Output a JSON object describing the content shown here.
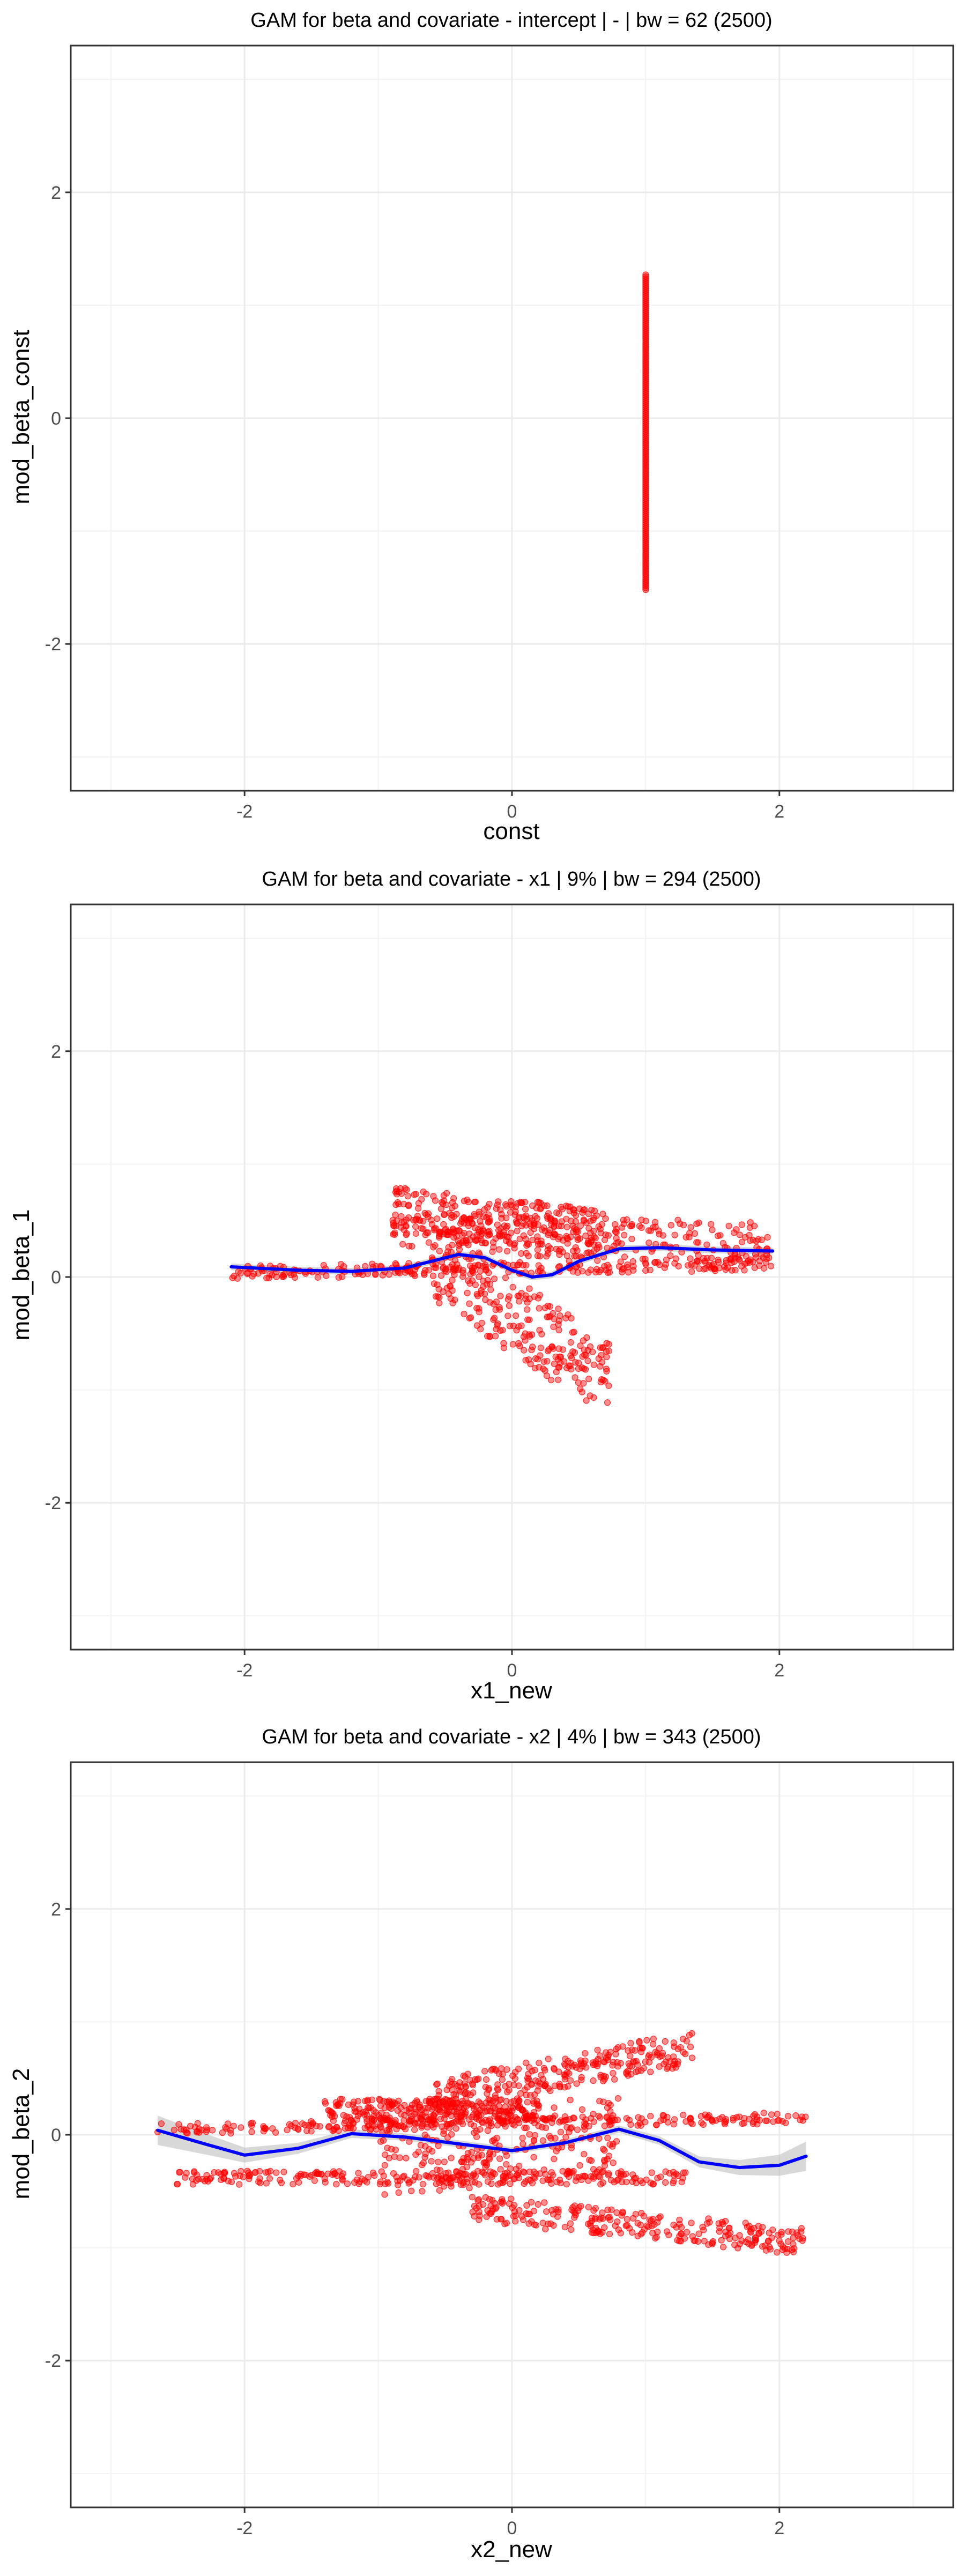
{
  "chart_data": [
    {
      "type": "scatter",
      "title": "GAM for beta and covariate - intercept | - | bw = 62 (2500)",
      "xlabel": "const",
      "ylabel": "mod_beta_const",
      "xlim": [
        -3.3,
        3.3
      ],
      "ylim": [
        -3.3,
        3.3
      ],
      "xticks": [
        -2,
        0,
        2
      ],
      "yticks": [
        -2,
        0,
        2
      ],
      "xtick_labels": [
        "-2",
        "0",
        "2"
      ],
      "ytick_labels": [
        "-2",
        "0",
        "2"
      ],
      "grid": true,
      "point_color": "#ff0000",
      "line_color": "#0000ff",
      "ribbon_color": "#bebebe",
      "series": [
        {
          "kind": "points",
          "x_values": [
            1
          ],
          "y_range": [
            -1.52,
            1.27
          ]
        }
      ]
    },
    {
      "type": "scatter",
      "title": "GAM for beta and covariate - x1 | 9% | bw = 294 (2500)",
      "xlabel": "x1_new",
      "ylabel": "mod_beta_1",
      "xlim": [
        -3.3,
        3.3
      ],
      "ylim": [
        -3.3,
        3.3
      ],
      "xticks": [
        -2,
        0,
        2
      ],
      "yticks": [
        -2,
        0,
        2
      ],
      "xtick_labels": [
        "-2",
        "0",
        "2"
      ],
      "ytick_labels": [
        "-2",
        "0",
        "2"
      ],
      "grid": true,
      "point_color": "#ff0000",
      "line_color": "#0000ff",
      "ribbon_color": "#bebebe",
      "series": [
        {
          "kind": "points",
          "clusters": [
            {
              "x": [
                -2.1,
                1.95
              ],
              "y_center": 0.08,
              "spread": 0.06,
              "tilt": 0.04
            },
            {
              "x": [
                -0.9,
                1.95
              ],
              "y_center": 0.35,
              "spread": 0.18,
              "tilt": -0.05
            },
            {
              "x": [
                -0.9,
                0.7
              ],
              "y_center": 0.5,
              "spread": 0.2,
              "tilt": -0.1
            },
            {
              "x": [
                -0.6,
                0.75
              ],
              "y_center": -0.4,
              "spread": 0.35,
              "tilt": -0.55
            }
          ]
        },
        {
          "kind": "smooth",
          "x": [
            -2.1,
            -1.6,
            -1.2,
            -0.8,
            -0.6,
            -0.4,
            -0.2,
            0,
            0.15,
            0.3,
            0.5,
            0.8,
            1.1,
            1.5,
            1.95
          ],
          "y": [
            0.09,
            0.06,
            0.05,
            0.08,
            0.14,
            0.2,
            0.17,
            0.06,
            0.0,
            0.02,
            0.14,
            0.25,
            0.26,
            0.24,
            0.23
          ],
          "band": 0.03
        }
      ]
    },
    {
      "type": "scatter",
      "title": "GAM for beta and covariate - x2 | 4% | bw = 343 (2500)",
      "xlabel": "x2_new",
      "ylabel": "mod_beta_2",
      "xlim": [
        -3.3,
        3.3
      ],
      "ylim": [
        -3.3,
        3.3
      ],
      "xticks": [
        -2,
        0,
        2
      ],
      "yticks": [
        -2,
        0,
        2
      ],
      "xtick_labels": [
        "-2",
        "0",
        "2"
      ],
      "ytick_labels": [
        "-2",
        "0",
        "2"
      ],
      "grid": true,
      "point_color": "#ff0000",
      "line_color": "#0000ff",
      "ribbon_color": "#bebebe",
      "series": [
        {
          "kind": "points",
          "clusters": [
            {
              "x": [
                -2.65,
                2.2
              ],
              "y_center": 0.1,
              "spread": 0.05,
              "tilt": 0.05
            },
            {
              "x": [
                -2.55,
                1.3
              ],
              "y_center": -0.38,
              "spread": 0.06,
              "tilt": 0.0
            },
            {
              "x": [
                -1.4,
                0.2
              ],
              "y_center": 0.22,
              "spread": 0.1,
              "tilt": 0.0
            },
            {
              "x": [
                -0.6,
                1.35
              ],
              "y_center": 0.55,
              "spread": 0.15,
              "tilt": 0.22
            },
            {
              "x": [
                -0.3,
                2.2
              ],
              "y_center": -0.8,
              "spread": 0.12,
              "tilt": -0.15
            },
            {
              "x": [
                -1.0,
                0.8
              ],
              "y_center": -0.1,
              "spread": 0.35,
              "tilt": 0.1
            }
          ]
        },
        {
          "kind": "smooth",
          "x": [
            -2.65,
            -2.3,
            -2.0,
            -1.6,
            -1.2,
            -0.8,
            -0.4,
            0,
            0.4,
            0.8,
            1.1,
            1.4,
            1.7,
            2.0,
            2.2
          ],
          "y": [
            0.04,
            -0.08,
            -0.18,
            -0.12,
            0.01,
            -0.02,
            -0.08,
            -0.14,
            -0.07,
            0.05,
            -0.05,
            -0.24,
            -0.29,
            -0.27,
            -0.19
          ],
          "band_ends": 0.13,
          "band_mid": 0.03
        }
      ]
    }
  ]
}
